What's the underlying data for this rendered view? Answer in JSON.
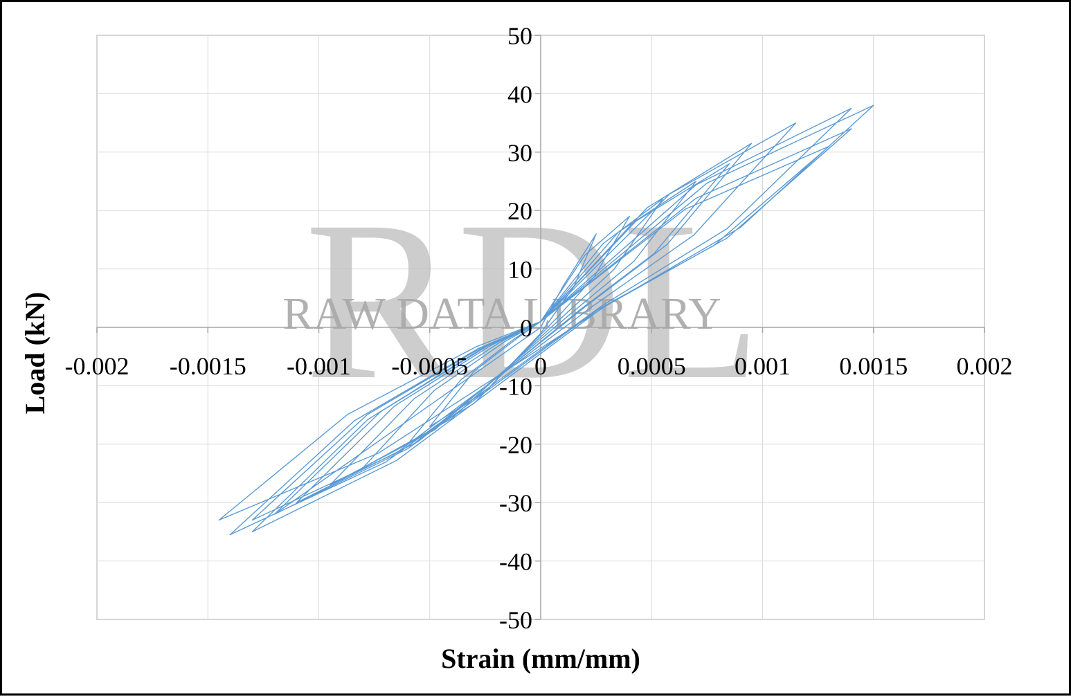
{
  "chart_data": {
    "type": "line",
    "x_label": "Strain (mm/mm)",
    "y_label": "Load (kN)",
    "watermark_logo": "RDL",
    "watermark": "RAW DATA LIBRARY",
    "xlim": [
      -0.002,
      0.002
    ],
    "ylim": [
      -50,
      50
    ],
    "xticks": [
      -0.002,
      -0.0015,
      -0.001,
      -0.0005,
      0,
      0.0005,
      0.001,
      0.0015,
      0.002
    ],
    "yticks": [
      -50,
      -40,
      -30,
      -20,
      -10,
      0,
      10,
      20,
      30,
      40,
      50
    ],
    "grid": true,
    "series": [
      {
        "color": "#5b9bd5",
        "x": [
          0,
          0.0001,
          0.00025,
          0.00015,
          0,
          -0.00025,
          -0.0005,
          -0.0003,
          -0.0001,
          0,
          0.0002,
          0.0004,
          0.00024,
          8e-05,
          -0.0003,
          -0.0006,
          -0.00036,
          -0.00012,
          0,
          0.00028,
          0.00055,
          0.00033,
          0.00011,
          -0.0004,
          -0.0008,
          -0.00048,
          -0.00016,
          0,
          0.00035,
          0.0007,
          0.00042,
          0.00014,
          -0.00048,
          -0.00095,
          -0.00057,
          -0.00019,
          0,
          0.00043,
          0.00085,
          0.00051,
          0.00017,
          -0.00055,
          -0.0011,
          -0.00066,
          -0.00022,
          0,
          0.00048,
          0.00095,
          0.00057,
          0.00019,
          -0.0006,
          -0.0012,
          -0.00072,
          -0.00024,
          0,
          0.00058,
          0.00115,
          0.00069,
          0.00023,
          -0.00065,
          -0.0013,
          -0.00078,
          -0.00026,
          0,
          0.0007,
          0.0014,
          0.00084,
          0.00028,
          -0.0007,
          -0.0014,
          -0.00084,
          -0.00028,
          0,
          0.00075,
          0.0015,
          0.0009,
          0.0003,
          -0.00073,
          -0.00145,
          -0.00087,
          -0.00029,
          0,
          0.0007,
          0.0014,
          0.00084,
          0.00028,
          -0.00065,
          -0.0013,
          -0.00078,
          -0.00026,
          0,
          0.00065,
          0.0013,
          0.00078,
          0.00026,
          -0.0006,
          -0.0012,
          0
        ],
        "values": [
          0,
          7,
          16,
          7,
          -1,
          -11,
          -17,
          -7.5,
          -1.7,
          1,
          12.4,
          19,
          8.6,
          1.9,
          -13,
          -20,
          -9,
          -2,
          1,
          14.3,
          22,
          9.9,
          2.2,
          -15.6,
          -24,
          -10.8,
          -2.4,
          1,
          16.3,
          25,
          11.3,
          2.5,
          -17.6,
          -27,
          -12.2,
          -2.7,
          1,
          18.2,
          28,
          12.6,
          2.8,
          -19.5,
          -30,
          -13.5,
          -3,
          1,
          20.5,
          31.5,
          14.2,
          3.2,
          -20.8,
          -32,
          -14.4,
          -3.2,
          1,
          22.8,
          35,
          15.8,
          3.5,
          -21.5,
          -33,
          -14.9,
          -3.3,
          1,
          24.4,
          37.5,
          16.9,
          3.8,
          -23.1,
          -35.5,
          -16,
          -3.6,
          1,
          24.7,
          38,
          17.1,
          3.8,
          -21.5,
          -33,
          -14.9,
          -3.3,
          1,
          22.1,
          34,
          15.3,
          3.4,
          -22.8,
          -35,
          -15.8,
          -3.5,
          1,
          20.2,
          31,
          14,
          3.1,
          -20.8,
          -32,
          0
        ]
      }
    ]
  }
}
